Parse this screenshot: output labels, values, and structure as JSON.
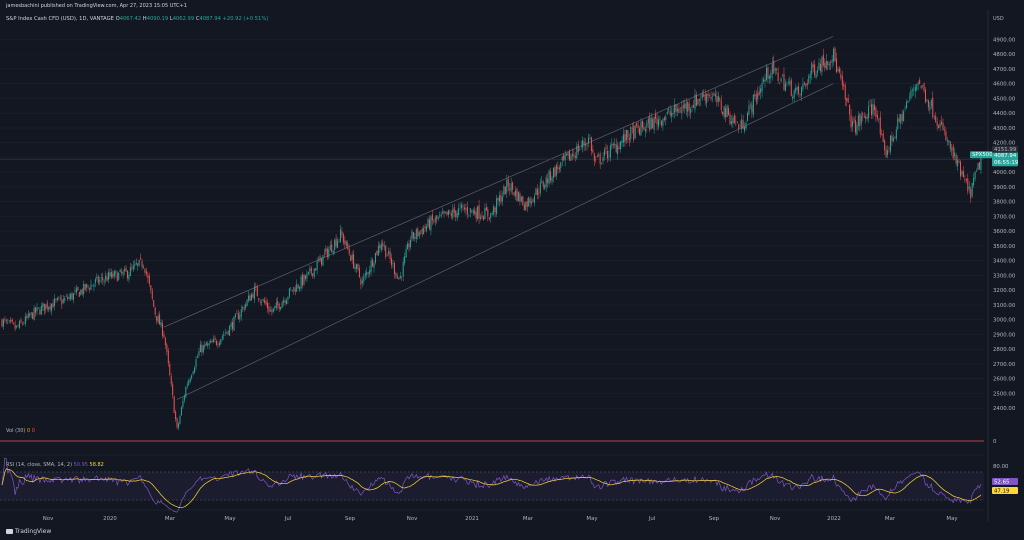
{
  "header": {
    "published": "jamesbachini published on TradingView.com, Apr 27, 2023 15:05 UTC+1",
    "symbol_line": "S&P Index Cash CFD (USD), 1D, VANTAGE",
    "o_label": "O",
    "o": "4067.42",
    "h_label": "H",
    "h": "4090.19",
    "l_label": "L",
    "l": "4062.99",
    "c_label": "C",
    "c": "4087.94",
    "change": "+20.92 (+0.51%)"
  },
  "currency": "USD",
  "vol": {
    "label": "Vol (30)",
    "v1": "0",
    "v2": "0",
    "axis_zero": "0"
  },
  "rsi": {
    "label": "RSI (14, close, SMA, 14, 2)",
    "v1": "50.95",
    "v2": "58.82",
    "axis_top": "80.00",
    "tag_rsi": "52.65",
    "tag_ma": "47.19"
  },
  "price_tags": {
    "symbol": "SPX500",
    "last": "4087.94",
    "countdown": "06:55:19",
    "level": "4151.99"
  },
  "branding": "TradingView",
  "colors": {
    "up": "#26a69a",
    "down": "#ef5350",
    "rsi_line": "#7e57c2",
    "rsi_ma": "#fdd835",
    "last_tag": "#26a69a",
    "channel": "#5d606b"
  },
  "chart_data": {
    "type": "candlestick",
    "y_axis": {
      "min": 2300,
      "max": 4950,
      "ticks": [
        2400,
        2500,
        2600,
        2700,
        2800,
        2900,
        3000,
        3100,
        3200,
        3300,
        3400,
        3500,
        3600,
        3700,
        3800,
        3900,
        4000,
        4100,
        4200,
        4300,
        4400,
        4500,
        4600,
        4700,
        4800,
        4900
      ]
    },
    "x_ticks": [
      "Nov",
      "2020",
      "Mar",
      "May",
      "Jul",
      "Sep",
      "Nov",
      "2021",
      "Mar",
      "May",
      "Jul",
      "Sep",
      "Nov",
      "2022",
      "Mar",
      "May"
    ],
    "close_path": [
      {
        "date": "2019-10-01",
        "close": 2990
      },
      {
        "date": "2019-10-15",
        "close": 2940
      },
      {
        "date": "2019-11-01",
        "close": 3040
      },
      {
        "date": "2019-11-15",
        "close": 3100
      },
      {
        "date": "2019-12-01",
        "close": 3130
      },
      {
        "date": "2019-12-15",
        "close": 3180
      },
      {
        "date": "2020-01-01",
        "close": 3250
      },
      {
        "date": "2020-01-15",
        "close": 3290
      },
      {
        "date": "2020-02-01",
        "close": 3310
      },
      {
        "date": "2020-02-19",
        "close": 3390
      },
      {
        "date": "2020-03-01",
        "close": 3050
      },
      {
        "date": "2020-03-10",
        "close": 2900
      },
      {
        "date": "2020-03-23",
        "close": 2250
      },
      {
        "date": "2020-04-01",
        "close": 2550
      },
      {
        "date": "2020-04-15",
        "close": 2800
      },
      {
        "date": "2020-05-01",
        "close": 2850
      },
      {
        "date": "2020-05-15",
        "close": 2950
      },
      {
        "date": "2020-06-08",
        "close": 3200
      },
      {
        "date": "2020-06-25",
        "close": 3050
      },
      {
        "date": "2020-07-15",
        "close": 3200
      },
      {
        "date": "2020-08-01",
        "close": 3300
      },
      {
        "date": "2020-09-02",
        "close": 3580
      },
      {
        "date": "2020-09-23",
        "close": 3250
      },
      {
        "date": "2020-10-12",
        "close": 3530
      },
      {
        "date": "2020-10-30",
        "close": 3270
      },
      {
        "date": "2020-11-10",
        "close": 3550
      },
      {
        "date": "2020-12-01",
        "close": 3660
      },
      {
        "date": "2021-01-01",
        "close": 3750
      },
      {
        "date": "2021-01-29",
        "close": 3710
      },
      {
        "date": "2021-02-15",
        "close": 3920
      },
      {
        "date": "2021-03-04",
        "close": 3780
      },
      {
        "date": "2021-04-01",
        "close": 4000
      },
      {
        "date": "2021-05-07",
        "close": 4230
      },
      {
        "date": "2021-05-12",
        "close": 4060
      },
      {
        "date": "2021-06-15",
        "close": 4250
      },
      {
        "date": "2021-07-15",
        "close": 4360
      },
      {
        "date": "2021-08-15",
        "close": 4460
      },
      {
        "date": "2021-09-02",
        "close": 4540
      },
      {
        "date": "2021-10-04",
        "close": 4300
      },
      {
        "date": "2021-11-02",
        "close": 4700
      },
      {
        "date": "2021-12-01",
        "close": 4520
      },
      {
        "date": "2021-12-15",
        "close": 4700
      },
      {
        "date": "2022-01-04",
        "close": 4800
      },
      {
        "date": "2022-01-24",
        "close": 4300
      },
      {
        "date": "2022-02-15",
        "close": 4450
      },
      {
        "date": "2022-02-24",
        "close": 4110
      },
      {
        "date": "2022-03-29",
        "close": 4630
      },
      {
        "date": "2022-04-15",
        "close": 4400
      },
      {
        "date": "2022-05-01",
        "close": 4150
      },
      {
        "date": "2022-05-20",
        "close": 3850
      },
      {
        "date": "2022-05-31",
        "close": 4087
      }
    ],
    "channel": {
      "upper": [
        {
          "date": "2020-03-10",
          "price": 2950
        },
        {
          "date": "2022-01-04",
          "price": 4920
        }
      ],
      "lower": [
        {
          "date": "2020-03-23",
          "price": 2460
        },
        {
          "date": "2022-01-04",
          "price": 4600
        }
      ]
    },
    "horizontal_line": 4087.94,
    "rsi_panel": {
      "range": [
        0,
        100
      ],
      "top_label": 80
    }
  }
}
